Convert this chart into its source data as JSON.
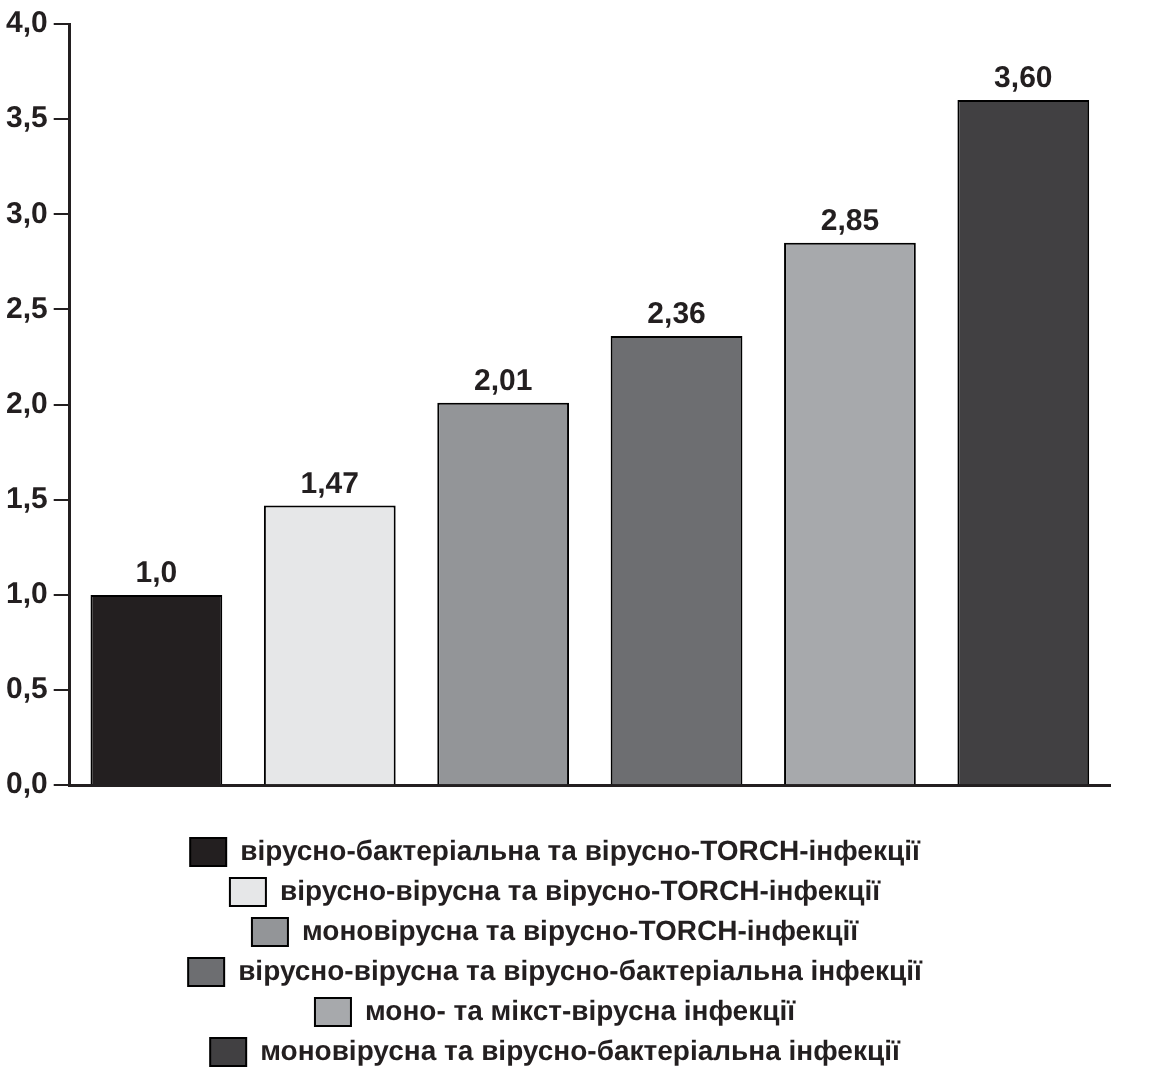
{
  "chart_data": {
    "type": "bar",
    "categories": [
      null,
      null,
      null,
      null,
      null,
      null
    ],
    "series": [
      {
        "name": "вірусно-бактеріальна та вірусно-TORCH-інфекції",
        "color": "#231f20",
        "values": [
          1.0,
          null,
          null,
          null,
          null,
          null
        ],
        "value_labels": [
          "1,0",
          null,
          null,
          null,
          null,
          null
        ]
      },
      {
        "name": "вірусно-вірусна та вірусно-TORCH-інфекції",
        "color": "#e6e7e8",
        "values": [
          null,
          1.47,
          null,
          null,
          null,
          null
        ],
        "value_labels": [
          null,
          "1,47",
          null,
          null,
          null,
          null
        ]
      },
      {
        "name": "моновірусна та вірусно-TORCH-інфекції",
        "color": "#939598",
        "values": [
          null,
          null,
          2.01,
          null,
          null,
          null
        ],
        "value_labels": [
          null,
          null,
          "2,01",
          null,
          null,
          null
        ]
      },
      {
        "name": "вірусно-вірусна та вірусно-бактеріальна інфекції",
        "color": "#6d6e71",
        "values": [
          null,
          null,
          null,
          2.36,
          null,
          null
        ],
        "value_labels": [
          null,
          null,
          null,
          "2,36",
          null,
          null
        ]
      },
      {
        "name": "моно- та мікст-вірусна інфекції",
        "color": "#a7a9ac",
        "values": [
          null,
          null,
          null,
          null,
          2.85,
          null
        ],
        "value_labels": [
          null,
          null,
          null,
          null,
          "2,85",
          null
        ]
      },
      {
        "name": "моновірусна та вірусно-бактеріальна інфекції",
        "color": "#414042",
        "values": [
          null,
          null,
          null,
          null,
          null,
          3.6
        ],
        "value_labels": [
          null,
          null,
          null,
          null,
          null,
          "3,60"
        ]
      }
    ],
    "ylim": [
      0,
      4
    ],
    "yticks": [
      {
        "value": 0,
        "label": "0,0"
      },
      {
        "value": 0.5,
        "label": "0,5"
      },
      {
        "value": 1,
        "label": "1,0"
      },
      {
        "value": 1.5,
        "label": "1,5"
      },
      {
        "value": 2,
        "label": "2,0"
      },
      {
        "value": 2.5,
        "label": "2,5"
      },
      {
        "value": 3,
        "label": "3,0"
      },
      {
        "value": 3.5,
        "label": "3,5"
      },
      {
        "value": 4,
        "label": "4,0"
      }
    ],
    "grid": false,
    "legend": "bottom"
  }
}
